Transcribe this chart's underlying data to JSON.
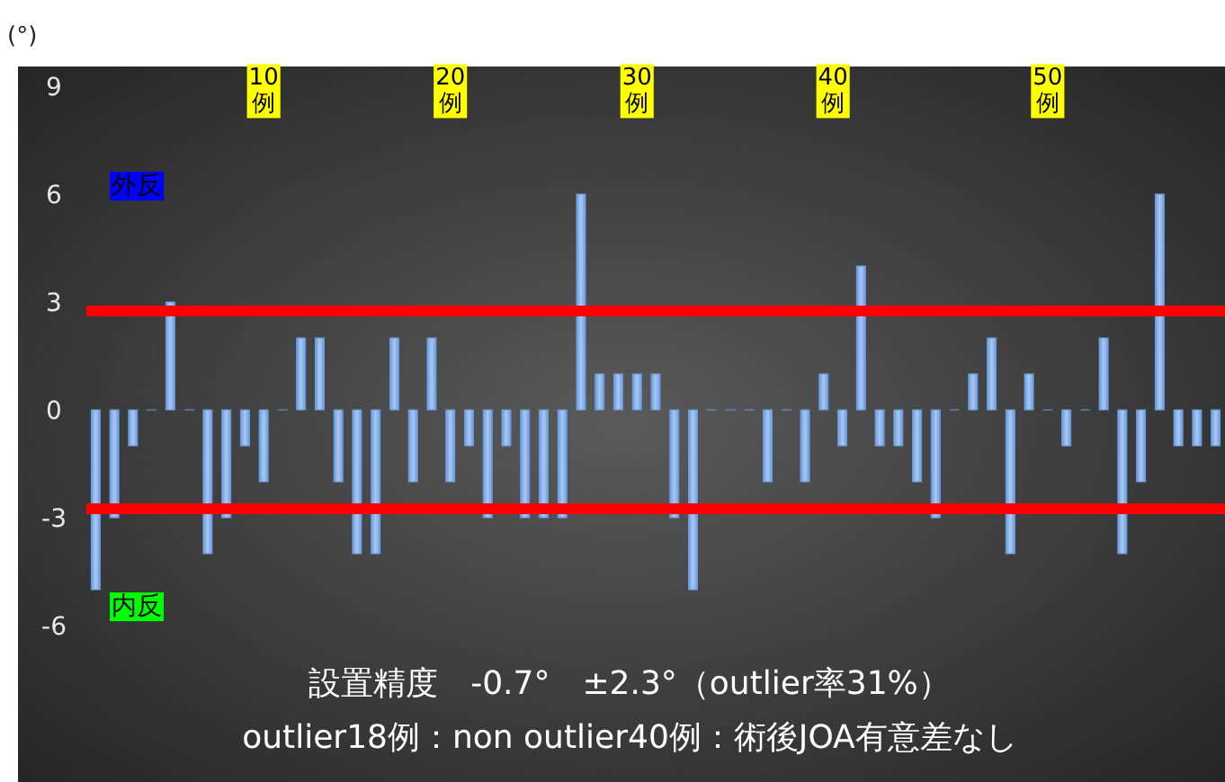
{
  "chart_data": {
    "type": "bar",
    "ylabel": "(°)",
    "categories": [
      null,
      null,
      null,
      null,
      null,
      null,
      null,
      null,
      null,
      null,
      null,
      null,
      null,
      null,
      null,
      null,
      null,
      null,
      null,
      null,
      null,
      null,
      null,
      null,
      null,
      null,
      null,
      null,
      null,
      null,
      null,
      null,
      null,
      null,
      null,
      null,
      null,
      null,
      null,
      null,
      null,
      null,
      null,
      null,
      null,
      null,
      null,
      null,
      null,
      null,
      null,
      null,
      null,
      null,
      null,
      null,
      null,
      null,
      null,
      null,
      null
    ],
    "values": [
      -5,
      -3,
      -1,
      0,
      3,
      0,
      -4,
      -3,
      -1,
      -2,
      0,
      2,
      2,
      -2,
      -4,
      -4,
      2,
      -2,
      2,
      -2,
      -1,
      -3,
      -1,
      -3,
      -3,
      -3,
      6,
      1,
      1,
      1,
      1,
      -3,
      -5,
      0,
      0,
      0,
      -2,
      0,
      -2,
      1,
      -1,
      4,
      -1,
      -1,
      -2,
      -3,
      0,
      1,
      2,
      -4,
      1,
      0,
      -1,
      0,
      2,
      -4,
      -2,
      6,
      -1,
      -1,
      -1
    ],
    "color": "#6a9be0",
    "ylim": [
      -10.35,
      9.55
    ],
    "yticks": [
      -6,
      -3,
      0,
      3,
      6,
      9
    ],
    "grid": false,
    "ref_lines": [
      {
        "axis": "y",
        "value": 2.75,
        "color": "#ff0000"
      },
      {
        "axis": "y",
        "value": -2.75,
        "color": "#ff0000"
      }
    ],
    "annotations": [
      "10\n例",
      "20\n例",
      "30\n例",
      "40\n例",
      "50\n例",
      "外反",
      "内反",
      "設置精度　-0.7°　±2.3°（outlier率31%）",
      "outlier18例：non outlier40例：術後JOA有意差なし"
    ]
  }
}
